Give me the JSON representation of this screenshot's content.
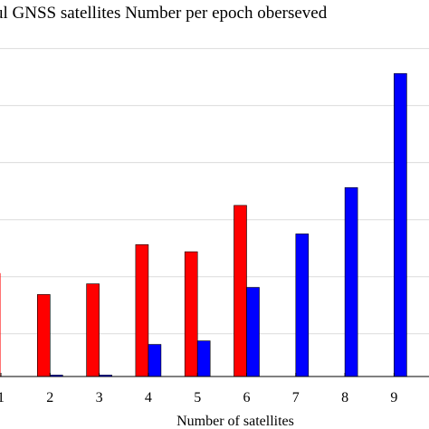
{
  "chart_data": {
    "type": "bar",
    "title": "ul GNSS satellites Number per epoch oberseved",
    "xlabel": "Number of satellites",
    "ylabel": "",
    "categories": [
      "1",
      "2",
      "3",
      "4",
      "5",
      "6",
      "7",
      "8",
      "9"
    ],
    "series": [
      {
        "color": "#ff0000",
        "values": [
          14.5,
          11.5,
          13.0,
          18.5,
          17.5,
          24.0,
          0,
          0,
          0
        ]
      },
      {
        "color": "#0000ff",
        "values": [
          0,
          0.2,
          0.2,
          4.5,
          5.0,
          12.5,
          20.0,
          26.5,
          42.5
        ]
      }
    ],
    "ylim": [
      0,
      49
    ],
    "grid": true,
    "legend": "none"
  }
}
